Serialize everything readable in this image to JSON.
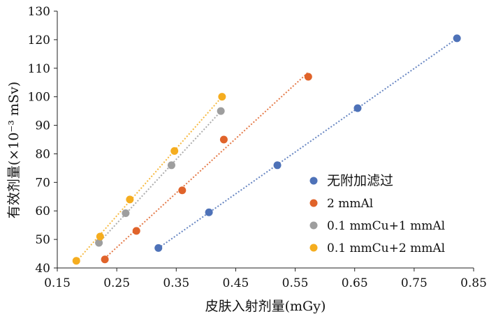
{
  "chart_data": {
    "type": "scatter",
    "xlabel": "皮肤入射剂量(mGy)",
    "ylabel": "有效剂量(×10⁻³ mSv)",
    "xlim": [
      0.15,
      0.85
    ],
    "ylim": [
      40,
      130
    ],
    "xticks": [
      "0.15",
      "0.25",
      "0.35",
      "0.45",
      "0.55",
      "0.65",
      "0.75",
      "0.85"
    ],
    "yticks": [
      "40",
      "50",
      "60",
      "70",
      "80",
      "90",
      "100",
      "110",
      "120",
      "130"
    ],
    "grid": false,
    "legend_position": "bottom-right",
    "trendline": "linear, dotted",
    "series": [
      {
        "name": "无附加滤过",
        "color": "#4e72b8",
        "x": [
          0.32,
          0.405,
          0.52,
          0.655,
          0.822
        ],
        "y": [
          47,
          59.5,
          76,
          96,
          120.5
        ]
      },
      {
        "name": "2 mmAl",
        "color": "#e0632a",
        "x": [
          0.23,
          0.283,
          0.36,
          0.43,
          0.572
        ],
        "y": [
          43,
          53,
          67.2,
          85,
          107
        ]
      },
      {
        "name": "0.1 mmCu+1 mmAl",
        "color": "#9e9e9e",
        "x": [
          0.22,
          0.265,
          0.342,
          0.425
        ],
        "y": [
          48.8,
          59.2,
          76,
          95
        ]
      },
      {
        "name": "0.1 mmCu+2 mmAl",
        "color": "#f5ad1f",
        "x": [
          0.182,
          0.222,
          0.272,
          0.347,
          0.427
        ],
        "y": [
          42.5,
          51,
          64,
          81,
          100
        ]
      }
    ]
  }
}
